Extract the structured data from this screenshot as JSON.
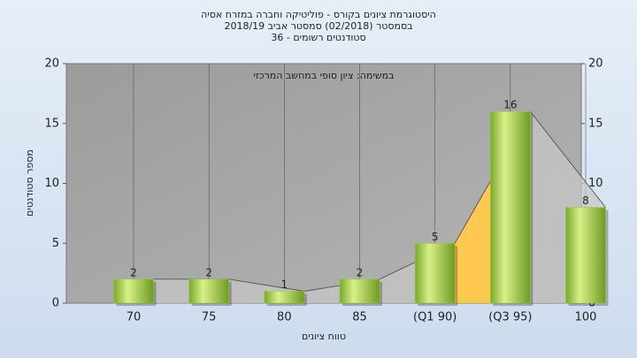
{
  "chart_data": {
    "type": "bar",
    "title": [
      "היסטוגרמת ציונים בקורס - פוליטיקה וחברה במזרח אסיה",
      "בסמסטר  (02/2018)  סמסטר אביב 2018/19",
      "סטודנטים רשומים - 36"
    ],
    "annotation": "במשימה: ציון סופי במחשב המרכזי",
    "xlabel": "טווח ציונים",
    "ylabel": "מספר סטודנטים",
    "categories": [
      "70",
      "75",
      "80",
      "85",
      "(Q1 90)",
      "(Q3 95)",
      "100"
    ],
    "values": [
      2,
      2,
      1,
      2,
      5,
      16,
      8
    ],
    "color": "#9ccc3c",
    "ylim": [
      0,
      20
    ],
    "yticks": [
      0,
      5,
      10,
      15,
      20
    ],
    "y2lim": [
      0,
      20
    ],
    "y2ticks": [
      0,
      5,
      10,
      15,
      20
    ],
    "grid": true
  }
}
